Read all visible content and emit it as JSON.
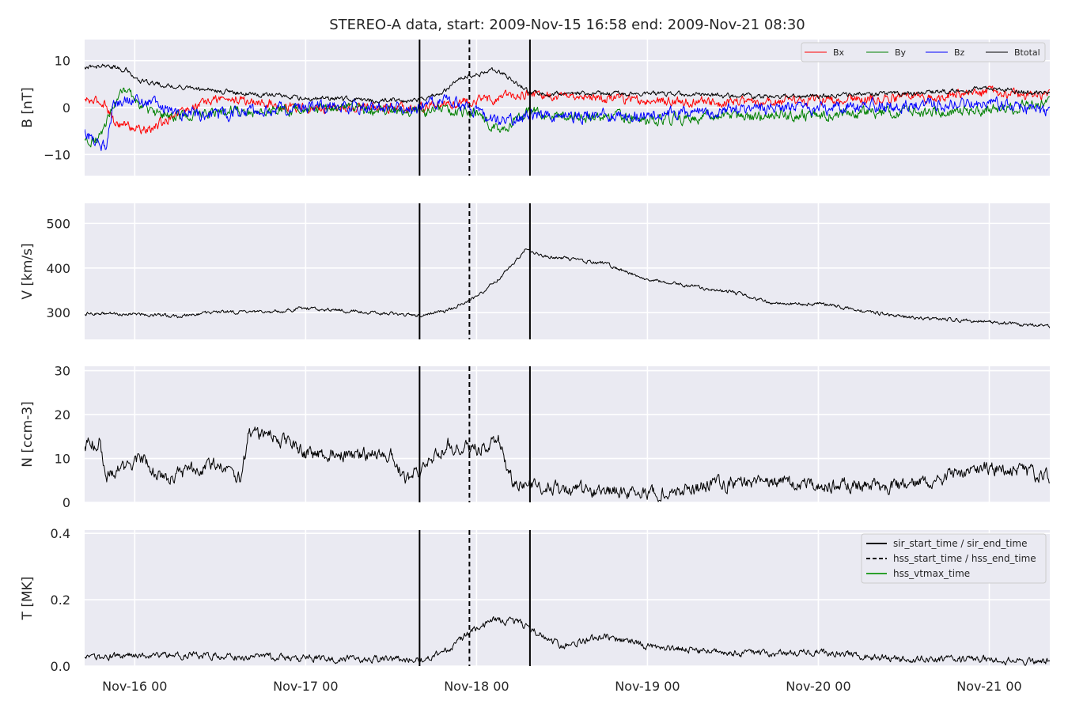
{
  "chart_data": {
    "type": "line",
    "title": "STEREO-A data, start: 2009-Nov-15 16:58  end: 2009-Nov-21 08:30",
    "x_range": [
      "2009-11-15 16:58",
      "2009-11-21 08:30"
    ],
    "x_ticks": [
      "Nov-16 00",
      "Nov-17 00",
      "Nov-18 00",
      "Nov-19 00",
      "Nov-20 00",
      "Nov-21 00"
    ],
    "grid": true,
    "events": [
      {
        "label": "sir_start_time / sir_end_time",
        "style": "solid",
        "color": "#000000",
        "times": [
          "2009-11-17 16:00",
          "2009-11-18 07:30"
        ]
      },
      {
        "label": "hss_start_time / hss_end_time",
        "style": "dashed",
        "color": "#000000",
        "times": [
          "2009-11-17 23:00"
        ]
      },
      {
        "label": "hss_vtmax_time",
        "style": "solid",
        "color": "#2ca02c",
        "times": []
      }
    ],
    "panels": [
      {
        "id": "B",
        "ylabel": "B [nT]",
        "ylim": [
          -14.5,
          14.5
        ],
        "yticks": [
          10,
          0,
          -10
        ],
        "ytick_labels": [
          "10",
          "0",
          "−10"
        ],
        "legend": "top-right",
        "series": [
          {
            "name": "Bx",
            "color": "#ff0000",
            "noise": 0.8,
            "points": [
              [
                "2009-11-15 17:00",
                1.5
              ],
              [
                "2009-11-15 20:00",
                1
              ],
              [
                "2009-11-15 21:00",
                -3
              ],
              [
                "2009-11-16 02:00",
                -5
              ],
              [
                "2009-11-16 06:00",
                -1
              ],
              [
                "2009-11-16 12:00",
                2
              ],
              [
                "2009-11-16 18:00",
                1
              ],
              [
                "2009-11-17 00:00",
                0
              ],
              [
                "2009-11-17 12:00",
                0
              ],
              [
                "2009-11-17 16:00",
                0
              ],
              [
                "2009-11-17 20:00",
                1
              ],
              [
                "2009-11-18 03:00",
                2
              ],
              [
                "2009-11-18 07:30",
                3
              ],
              [
                "2009-11-18 12:00",
                2.5
              ],
              [
                "2009-11-19 00:00",
                1.5
              ],
              [
                "2009-11-19 12:00",
                1
              ],
              [
                "2009-11-20 00:00",
                1.5
              ],
              [
                "2009-11-20 12:00",
                2
              ],
              [
                "2009-11-21 00:00",
                3
              ],
              [
                "2009-11-21 08:30",
                2.5
              ]
            ]
          },
          {
            "name": "By",
            "color": "#008000",
            "noise": 0.9,
            "points": [
              [
                "2009-11-15 17:00",
                -7
              ],
              [
                "2009-11-15 19:00",
                -6
              ],
              [
                "2009-11-15 21:00",
                0
              ],
              [
                "2009-11-15 22:00",
                4
              ],
              [
                "2009-11-16 02:00",
                -1
              ],
              [
                "2009-11-16 06:00",
                -2
              ],
              [
                "2009-11-16 12:00",
                -1
              ],
              [
                "2009-11-17 00:00",
                0
              ],
              [
                "2009-11-17 12:00",
                -0.5
              ],
              [
                "2009-11-17 16:00",
                -1
              ],
              [
                "2009-11-17 20:00",
                -1
              ],
              [
                "2009-11-18 00:00",
                -1
              ],
              [
                "2009-11-18 03:00",
                -5
              ],
              [
                "2009-11-18 07:30",
                -1
              ],
              [
                "2009-11-19 00:00",
                -2.5
              ],
              [
                "2009-11-19 12:00",
                -2
              ],
              [
                "2009-11-20 00:00",
                -1.5
              ],
              [
                "2009-11-20 12:00",
                -1
              ],
              [
                "2009-11-21 00:00",
                -0.5
              ],
              [
                "2009-11-21 08:30",
                1
              ]
            ]
          },
          {
            "name": "Bz",
            "color": "#0000ff",
            "noise": 1.0,
            "points": [
              [
                "2009-11-15 17:00",
                -5
              ],
              [
                "2009-11-15 19:00",
                -8
              ],
              [
                "2009-11-15 20:00",
                -8
              ],
              [
                "2009-11-15 21:00",
                1
              ],
              [
                "2009-11-16 00:00",
                2
              ],
              [
                "2009-11-16 06:00",
                -1
              ],
              [
                "2009-11-16 12:00",
                -1.5
              ],
              [
                "2009-11-17 00:00",
                0
              ],
              [
                "2009-11-17 12:00",
                0
              ],
              [
                "2009-11-17 16:00",
                0
              ],
              [
                "2009-11-17 20:00",
                2
              ],
              [
                "2009-11-18 00:00",
                -1
              ],
              [
                "2009-11-18 03:00",
                -3
              ],
              [
                "2009-11-18 07:30",
                -2
              ],
              [
                "2009-11-19 00:00",
                -1.5
              ],
              [
                "2009-11-19 12:00",
                -0.5
              ],
              [
                "2009-11-20 00:00",
                0
              ],
              [
                "2009-11-20 12:00",
                0.5
              ],
              [
                "2009-11-21 00:00",
                1
              ],
              [
                "2009-11-21 08:30",
                -1
              ]
            ]
          },
          {
            "name": "Btotal",
            "color": "#000000",
            "noise": 0.4,
            "points": [
              [
                "2009-11-15 17:00",
                8.5
              ],
              [
                "2009-11-15 20:00",
                9
              ],
              [
                "2009-11-15 23:00",
                8
              ],
              [
                "2009-11-16 00:00",
                6
              ],
              [
                "2009-11-16 03:00",
                5
              ],
              [
                "2009-11-16 06:00",
                4.5
              ],
              [
                "2009-11-16 12:00",
                3.5
              ],
              [
                "2009-11-17 00:00",
                2
              ],
              [
                "2009-11-17 12:00",
                1.5
              ],
              [
                "2009-11-17 16:00",
                1.5
              ],
              [
                "2009-11-17 19:00",
                3
              ],
              [
                "2009-11-17 22:00",
                6.5
              ],
              [
                "2009-11-18 03:00",
                8
              ],
              [
                "2009-11-18 07:30",
                3
              ],
              [
                "2009-11-19 00:00",
                3
              ],
              [
                "2009-11-19 12:00",
                2.5
              ],
              [
                "2009-11-20 00:00",
                2.5
              ],
              [
                "2009-11-20 12:00",
                3
              ],
              [
                "2009-11-21 00:00",
                4
              ],
              [
                "2009-11-21 08:30",
                3
              ]
            ]
          }
        ]
      },
      {
        "id": "V",
        "ylabel": "V [km/s]",
        "ylim": [
          240,
          545
        ],
        "yticks": [
          500,
          400,
          300
        ],
        "ytick_labels": [
          "500",
          "400",
          "300"
        ],
        "series": [
          {
            "name": "",
            "color": "#000000",
            "noise": 3,
            "points": [
              [
                "2009-11-15 17:00",
                298
              ],
              [
                "2009-11-16 00:00",
                297
              ],
              [
                "2009-11-16 06:00",
                292
              ],
              [
                "2009-11-16 12:00",
                302
              ],
              [
                "2009-11-16 18:00",
                300
              ],
              [
                "2009-11-17 00:00",
                310
              ],
              [
                "2009-11-17 12:00",
                298
              ],
              [
                "2009-11-17 16:00",
                292
              ],
              [
                "2009-11-17 20:00",
                305
              ],
              [
                "2009-11-18 00:00",
                335
              ],
              [
                "2009-11-18 03:00",
                375
              ],
              [
                "2009-11-18 06:00",
                425
              ],
              [
                "2009-11-18 07:00",
                445
              ],
              [
                "2009-11-18 09:00",
                428
              ],
              [
                "2009-11-18 18:00",
                410
              ],
              [
                "2009-11-19 00:00",
                375
              ],
              [
                "2009-11-19 12:00",
                345
              ],
              [
                "2009-11-19 18:00",
                320
              ],
              [
                "2009-11-20 00:00",
                320
              ],
              [
                "2009-11-20 12:00",
                290
              ],
              [
                "2009-11-21 00:00",
                280
              ],
              [
                "2009-11-21 08:30",
                268
              ]
            ]
          }
        ]
      },
      {
        "id": "N",
        "ylabel": "N [ccm-3]",
        "ylim": [
          0,
          31
        ],
        "yticks": [
          30,
          20,
          10,
          0
        ],
        "ytick_labels": [
          "30",
          "20",
          "10",
          "0"
        ],
        "series": [
          {
            "name": "",
            "color": "#000000",
            "noise": 1.2,
            "points": [
              [
                "2009-11-15 17:00",
                13
              ],
              [
                "2009-11-15 19:00",
                14
              ],
              [
                "2009-11-15 20:00",
                6
              ],
              [
                "2009-11-15 23:00",
                8
              ],
              [
                "2009-11-16 01:00",
                10
              ],
              [
                "2009-11-16 04:00",
                5
              ],
              [
                "2009-11-16 09:00",
                8
              ],
              [
                "2009-11-16 12:00",
                9
              ],
              [
                "2009-11-16 15:00",
                5
              ],
              [
                "2009-11-16 16:00",
                16
              ],
              [
                "2009-11-16 20:00",
                15
              ],
              [
                "2009-11-17 00:00",
                11
              ],
              [
                "2009-11-17 12:00",
                11
              ],
              [
                "2009-11-17 14:00",
                5
              ],
              [
                "2009-11-17 16:00",
                7
              ],
              [
                "2009-11-17 20:00",
                13
              ],
              [
                "2009-11-18 00:00",
                12
              ],
              [
                "2009-11-18 03:00",
                15
              ],
              [
                "2009-11-18 05:00",
                5
              ],
              [
                "2009-11-18 07:30",
                3.5
              ],
              [
                "2009-11-19 00:00",
                2
              ],
              [
                "2009-11-19 12:00",
                4.5
              ],
              [
                "2009-11-20 00:00",
                4
              ],
              [
                "2009-11-20 12:00",
                4
              ],
              [
                "2009-11-21 00:00",
                8
              ],
              [
                "2009-11-21 08:30",
                6
              ]
            ]
          }
        ]
      },
      {
        "id": "T",
        "ylabel": "T [MK]",
        "ylim": [
          0,
          0.41
        ],
        "yticks": [
          0.4,
          0.2,
          0.0
        ],
        "ytick_labels": [
          "0.4",
          "0.2",
          "0.0"
        ],
        "legend": "top-right",
        "series": [
          {
            "name": "",
            "color": "#000000",
            "noise": 0.008,
            "points": [
              [
                "2009-11-15 17:00",
                0.02
              ],
              [
                "2009-11-16 00:00",
                0.035
              ],
              [
                "2009-11-16 12:00",
                0.03
              ],
              [
                "2009-11-17 00:00",
                0.025
              ],
              [
                "2009-11-17 16:00",
                0.02
              ],
              [
                "2009-11-17 20:00",
                0.05
              ],
              [
                "2009-11-17 23:00",
                0.1
              ],
              [
                "2009-11-18 02:00",
                0.14
              ],
              [
                "2009-11-18 06:00",
                0.13
              ],
              [
                "2009-11-18 12:00",
                0.06
              ],
              [
                "2009-11-18 18:00",
                0.09
              ],
              [
                "2009-11-19 00:00",
                0.06
              ],
              [
                "2009-11-19 12:00",
                0.04
              ],
              [
                "2009-11-20 00:00",
                0.04
              ],
              [
                "2009-11-20 12:00",
                0.02
              ],
              [
                "2009-11-21 00:00",
                0.02
              ],
              [
                "2009-11-21 08:30",
                0.015
              ]
            ]
          }
        ]
      }
    ]
  }
}
